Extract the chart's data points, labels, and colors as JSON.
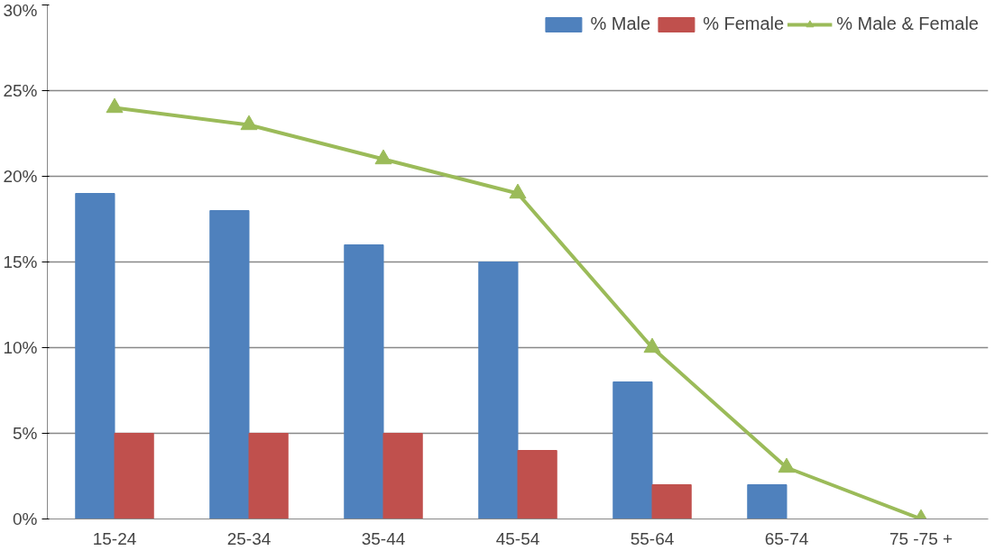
{
  "chart_data": {
    "type": "bar",
    "categories": [
      "15-24",
      "25-34",
      "35-44",
      "45-54",
      "55-64",
      "65-74",
      "75 -75 +"
    ],
    "series": [
      {
        "name": "% Male",
        "color": "#4f81bd",
        "values": [
          19,
          18,
          16,
          15,
          8,
          2,
          null
        ]
      },
      {
        "name": "% Female",
        "color": "#c0504d",
        "values": [
          5,
          5,
          5,
          4,
          2,
          null,
          null
        ]
      },
      {
        "name": "% Male & Female",
        "type": "line",
        "color": "#9bbb59",
        "marker": "triangle",
        "values": [
          24,
          23,
          21,
          19,
          10,
          3,
          0
        ]
      }
    ],
    "ylim": [
      0,
      30
    ],
    "yticks": [
      {
        "value": 0,
        "label": "0%"
      },
      {
        "value": 5,
        "label": "5%"
      },
      {
        "value": 10,
        "label": "10%"
      },
      {
        "value": 15,
        "label": "15%"
      },
      {
        "value": 20,
        "label": "20%"
      },
      {
        "value": 25,
        "label": "25%"
      },
      {
        "value": 30,
        "label": "30%"
      }
    ],
    "grid": "y",
    "legend": "top right"
  }
}
